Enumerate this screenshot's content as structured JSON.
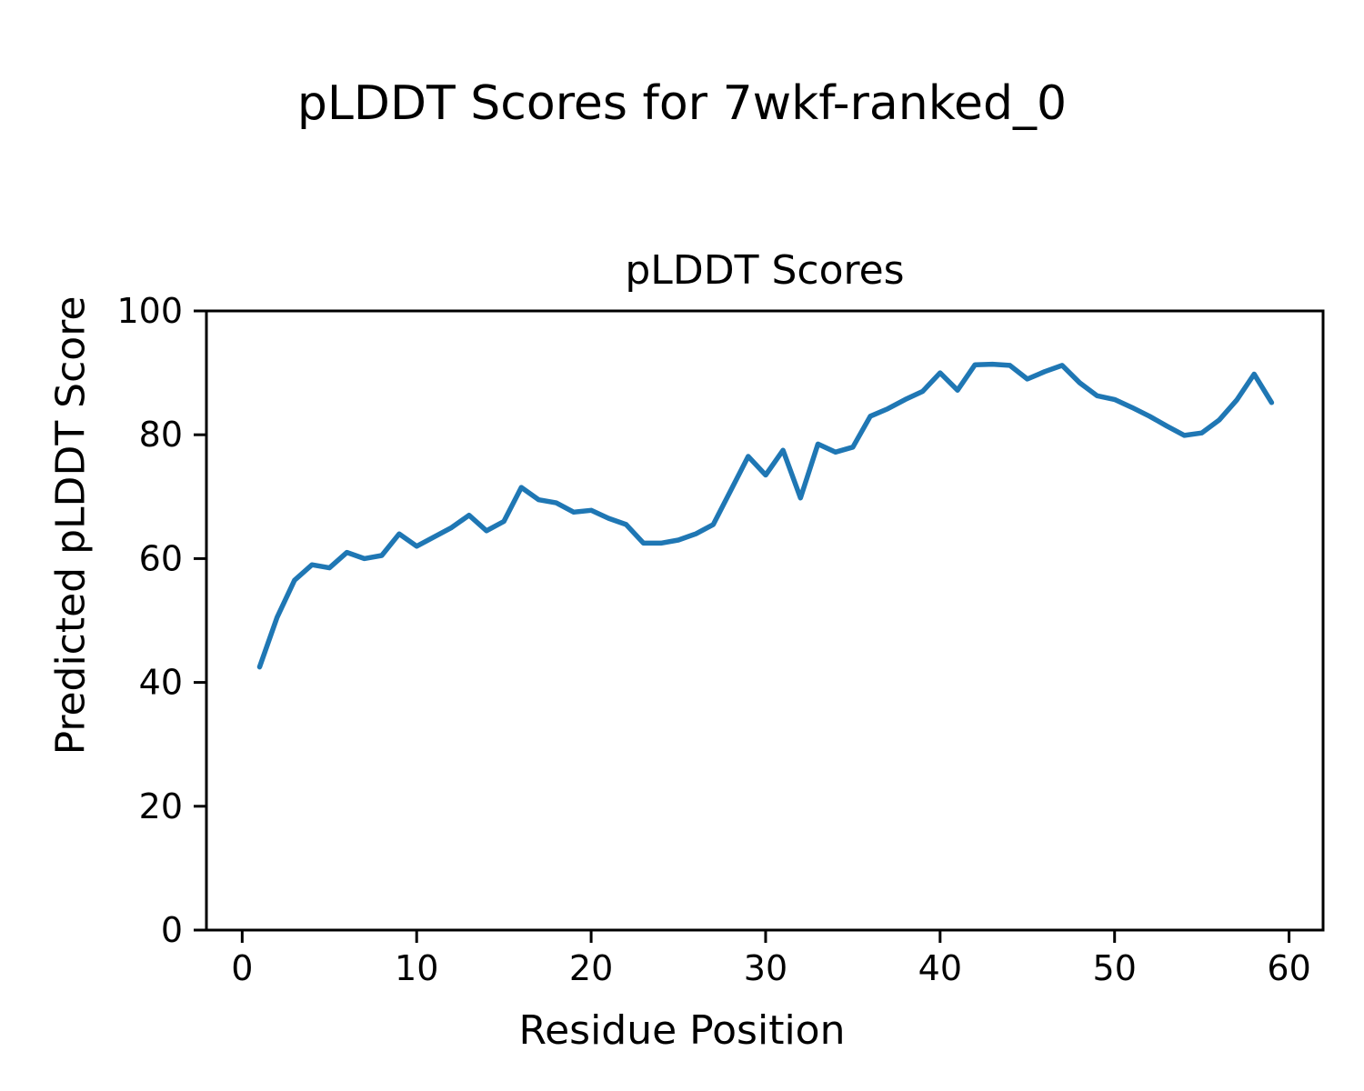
{
  "figure": {
    "title": "pLDDT Scores for 7wkf-ranked_0"
  },
  "chart_data": {
    "type": "line",
    "title": "pLDDT Scores",
    "xlabel": "Residue Position",
    "ylabel": "Predicted pLDDT Score",
    "legend": null,
    "grid": false,
    "line_color": "#1f77b4",
    "line_width": 5.5,
    "xlim": [
      -2.05,
      61.95
    ],
    "ylim": [
      0,
      100
    ],
    "xticks": [
      0,
      10,
      20,
      30,
      40,
      50,
      60
    ],
    "yticks": [
      0,
      20,
      40,
      60,
      80,
      100
    ],
    "x": [
      1,
      2,
      3,
      4,
      5,
      6,
      7,
      8,
      9,
      10,
      11,
      12,
      13,
      14,
      15,
      16,
      17,
      18,
      19,
      20,
      21,
      22,
      23,
      24,
      25,
      26,
      27,
      28,
      29,
      30,
      31,
      32,
      33,
      34,
      35,
      36,
      37,
      38,
      39,
      40,
      41,
      42,
      43,
      44,
      45,
      46,
      47,
      48,
      49,
      50,
      51,
      52,
      53,
      54,
      55,
      56,
      57,
      58,
      59
    ],
    "values": [
      42.5,
      50.5,
      56.5,
      59,
      58.5,
      61,
      60,
      60.5,
      64,
      62,
      63.5,
      65,
      67,
      64.5,
      66,
      71.5,
      69.5,
      69,
      67.5,
      67.8,
      66.5,
      65.5,
      62.5,
      62.5,
      63,
      64,
      65.5,
      71,
      76.5,
      73.5,
      77.5,
      69.8,
      78.5,
      77.2,
      78,
      83,
      84.2,
      85.7,
      87,
      90,
      87.2,
      91.3,
      91.4,
      91.2,
      89,
      90.2,
      91.2,
      88.4,
      86.3,
      85.7,
      84.4,
      83,
      81.4,
      79.9,
      80.3,
      82.4,
      85.6,
      89.8,
      85.2
    ]
  }
}
